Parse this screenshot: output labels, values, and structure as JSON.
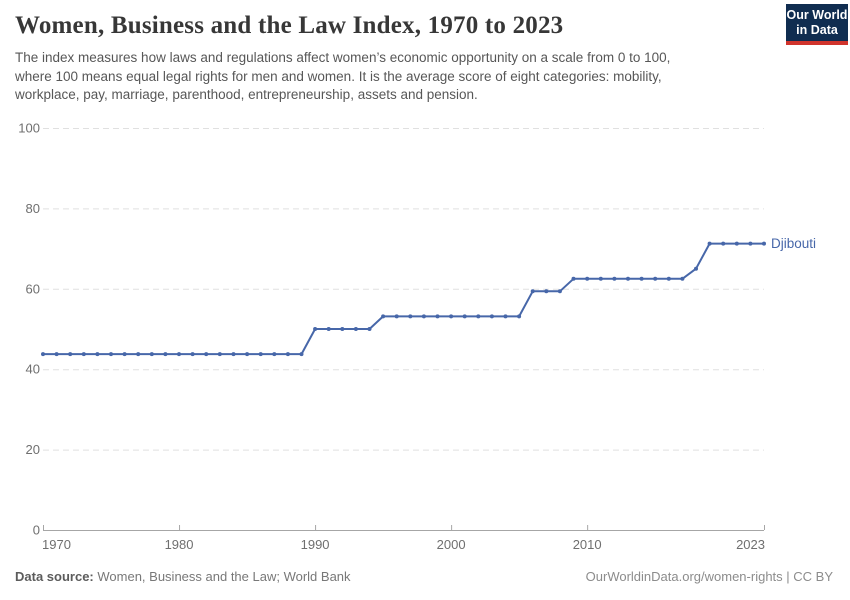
{
  "header": {
    "title": "Women, Business and the Law Index, 1970 to 2023",
    "subtitle_lines": [
      "The index measures how laws and regulations affect women’s economic opportunity on a scale from 0 to 100,",
      "where 100 means equal legal rights for men and women. It is the average score of eight categories: mobility,",
      "workplace, pay, marriage, parenthood, entrepreneurship, assets and pension."
    ],
    "logo": {
      "line1": "Our World",
      "line2": "in Data",
      "bg_color": "#102d50",
      "stripe_color": "#d0342c"
    }
  },
  "chart_data": {
    "type": "line",
    "title": "Women, Business and the Law Index, 1970 to 2023",
    "xlabel": "",
    "ylabel": "",
    "xlim": [
      1970,
      2023
    ],
    "ylim": [
      0,
      100
    ],
    "x_ticks": [
      1970,
      1980,
      1990,
      2000,
      2010,
      2023
    ],
    "y_ticks": [
      0,
      20,
      40,
      60,
      80,
      100
    ],
    "grid": "horizontal-dashed",
    "legend_position": "line-end-label",
    "colors": {
      "line": "#4767a9",
      "grid": "#e0e0e0",
      "axis": "#a6a6a6",
      "tick_text": "#6f6f6f"
    },
    "x": [
      1970,
      1971,
      1972,
      1973,
      1974,
      1975,
      1976,
      1977,
      1978,
      1979,
      1980,
      1981,
      1982,
      1983,
      1984,
      1985,
      1986,
      1987,
      1988,
      1989,
      1990,
      1991,
      1992,
      1993,
      1994,
      1995,
      1996,
      1997,
      1998,
      1999,
      2000,
      2001,
      2002,
      2003,
      2004,
      2005,
      2006,
      2007,
      2008,
      2009,
      2010,
      2011,
      2012,
      2013,
      2014,
      2015,
      2016,
      2017,
      2018,
      2019,
      2020,
      2021,
      2022,
      2023
    ],
    "series": [
      {
        "name": "Djibouti",
        "color": "#4767a9",
        "values": [
          43.75,
          43.75,
          43.75,
          43.75,
          43.75,
          43.75,
          43.75,
          43.75,
          43.75,
          43.75,
          43.75,
          43.75,
          43.75,
          43.75,
          43.75,
          43.75,
          43.75,
          43.75,
          43.75,
          43.75,
          50,
          50,
          50,
          50,
          50,
          53.125,
          53.125,
          53.125,
          53.125,
          53.125,
          53.125,
          53.125,
          53.125,
          53.125,
          53.125,
          53.125,
          59.375,
          59.375,
          59.375,
          62.5,
          62.5,
          62.5,
          62.5,
          62.5,
          62.5,
          62.5,
          62.5,
          62.5,
          65,
          71.25,
          71.25,
          71.25,
          71.25,
          71.25
        ]
      }
    ]
  },
  "footer": {
    "source_label": "Data source:",
    "source_text": "Women, Business and the Law; World Bank",
    "right_text": "OurWorldinData.org/women-rights | CC BY"
  }
}
